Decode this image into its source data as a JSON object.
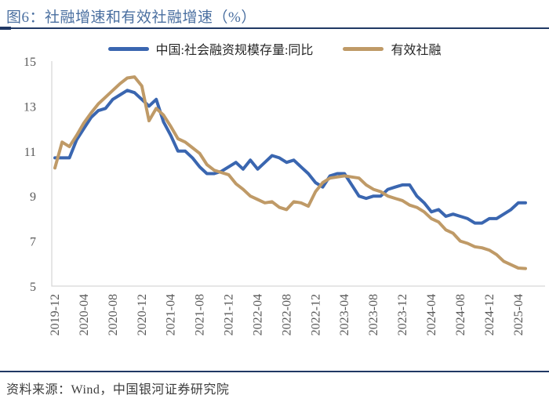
{
  "header": {
    "title": "图6：社融增速和有效社融增速（%）"
  },
  "footer": {
    "source": "资料来源：Wind，中国银河证券研究院"
  },
  "colors": {
    "series_blue": "#3A66B0",
    "series_tan": "#BF9A67",
    "title_blue": "#4A6FA0",
    "rule_navy": "#203864",
    "tick_gray": "#595959",
    "axis_gray": "#D6D6D6"
  },
  "chart_data": {
    "type": "line",
    "title": "社融增速和有效社融增速（%）",
    "xlabel": "",
    "ylabel": "",
    "ylim": [
      5,
      15
    ],
    "yticks": [
      5,
      7,
      9,
      11,
      13,
      15
    ],
    "grid": false,
    "legend_position": "top",
    "x_tick_every": 4,
    "x": [
      "2019-12",
      "2020-01",
      "2020-02",
      "2020-03",
      "2020-04",
      "2020-05",
      "2020-06",
      "2020-07",
      "2020-08",
      "2020-09",
      "2020-10",
      "2020-11",
      "2020-12",
      "2021-01",
      "2021-02",
      "2021-03",
      "2021-04",
      "2021-05",
      "2021-06",
      "2021-07",
      "2021-08",
      "2021-09",
      "2021-10",
      "2021-11",
      "2021-12",
      "2022-01",
      "2022-02",
      "2022-03",
      "2022-04",
      "2022-05",
      "2022-06",
      "2022-07",
      "2022-08",
      "2022-09",
      "2022-10",
      "2022-11",
      "2022-12",
      "2023-01",
      "2023-02",
      "2023-03",
      "2023-04",
      "2023-05",
      "2023-06",
      "2023-07",
      "2023-08",
      "2023-09",
      "2023-10",
      "2023-11",
      "2023-12",
      "2024-01",
      "2024-02",
      "2024-03",
      "2024-04",
      "2024-05",
      "2024-06",
      "2024-07",
      "2024-08",
      "2024-09",
      "2024-10",
      "2024-11",
      "2024-12",
      "2025-01",
      "2025-02",
      "2025-03",
      "2025-04",
      "2025-05"
    ],
    "series": [
      {
        "name": "中国:社会融资规模存量:同比",
        "color": "#3A66B0",
        "values": [
          10.7,
          10.7,
          10.7,
          11.5,
          12.0,
          12.5,
          12.8,
          12.9,
          13.3,
          13.5,
          13.7,
          13.6,
          13.3,
          13.0,
          13.3,
          12.3,
          11.7,
          11.0,
          11.0,
          10.7,
          10.3,
          10.0,
          10.0,
          10.1,
          10.3,
          10.5,
          10.2,
          10.6,
          10.2,
          10.5,
          10.8,
          10.7,
          10.5,
          10.6,
          10.3,
          10.0,
          9.6,
          9.4,
          9.9,
          10.0,
          10.0,
          9.5,
          9.0,
          8.9,
          9.0,
          9.0,
          9.3,
          9.4,
          9.5,
          9.5,
          9.0,
          8.7,
          8.3,
          8.4,
          8.1,
          8.2,
          8.1,
          8.0,
          7.8,
          7.8,
          8.0,
          8.0,
          8.2,
          8.4,
          8.7,
          8.7
        ]
      },
      {
        "name": "有效社融",
        "color": "#BF9A67",
        "values": [
          10.25,
          11.4,
          11.2,
          11.7,
          12.25,
          12.7,
          13.1,
          13.4,
          13.7,
          14.0,
          14.25,
          14.3,
          13.9,
          12.35,
          12.9,
          12.6,
          12.1,
          11.55,
          11.4,
          11.15,
          10.9,
          10.4,
          10.15,
          10.05,
          9.95,
          9.55,
          9.3,
          9.0,
          8.85,
          8.7,
          8.75,
          8.5,
          8.4,
          8.75,
          8.7,
          8.55,
          9.2,
          9.6,
          9.8,
          9.85,
          9.9,
          9.85,
          9.8,
          9.5,
          9.3,
          9.2,
          9.0,
          8.9,
          8.8,
          8.6,
          8.5,
          8.3,
          8.0,
          7.85,
          7.5,
          7.35,
          7.0,
          6.9,
          6.75,
          6.7,
          6.6,
          6.4,
          6.1,
          5.95,
          5.8,
          5.78
        ]
      }
    ]
  }
}
